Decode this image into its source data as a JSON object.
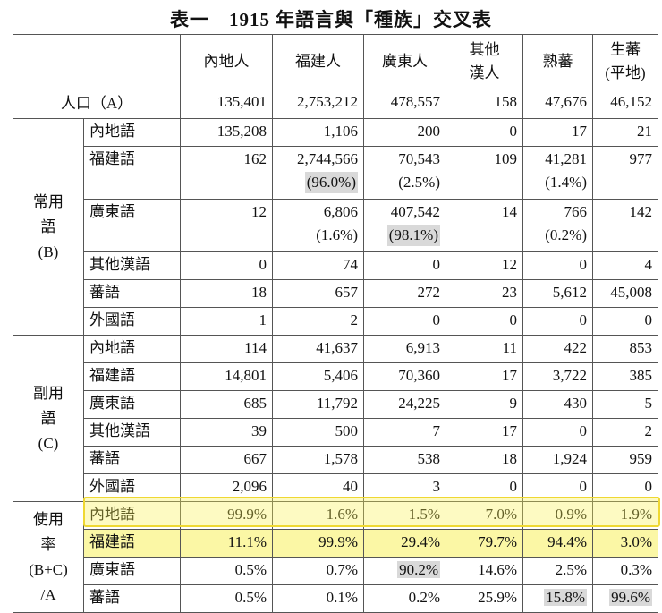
{
  "title": {
    "label": "表一",
    "year": "1915",
    "rest": "年語言與「種族」交叉表"
  },
  "columns": [
    {
      "lines": [
        "內地人"
      ]
    },
    {
      "lines": [
        "福建人"
      ]
    },
    {
      "lines": [
        "廣東人"
      ]
    },
    {
      "lines": [
        "其他",
        "漢人"
      ]
    },
    {
      "lines": [
        "熟蕃"
      ]
    },
    {
      "lines": [
        "生蕃",
        "(平地)"
      ]
    }
  ],
  "population": {
    "label": "人口（A）",
    "values": [
      "135,401",
      "2,753,212",
      "478,557",
      "158",
      "47,676",
      "46,152"
    ]
  },
  "groups": {
    "common": [
      "常用",
      "語",
      "(B)"
    ],
    "secondary": [
      "副用",
      "語",
      "(C)"
    ],
    "usage": [
      "使用",
      "率",
      "(B+C)",
      "/A"
    ]
  },
  "common_rows": [
    {
      "lang": "內地語",
      "values": [
        "135,208",
        "1,106",
        "200",
        "0",
        "17",
        "21"
      ],
      "pcts": []
    },
    {
      "lang": "福建語",
      "values": [
        "162",
        "2,744,566",
        "70,543",
        "109",
        "41,281",
        "977"
      ],
      "pcts": [
        "",
        "(96.0%)",
        "(2.5%)",
        "",
        "(1.4%)",
        ""
      ]
    },
    {
      "lang": "廣東語",
      "values": [
        "12",
        "6,806",
        "407,542",
        "14",
        "766",
        "142"
      ],
      "pcts": [
        "",
        "(1.6%)",
        "(98.1%)",
        "",
        "(0.2%)",
        ""
      ]
    },
    {
      "lang": "其他漢語",
      "values": [
        "0",
        "74",
        "0",
        "12",
        "0",
        "4"
      ],
      "pcts": []
    },
    {
      "lang": "蕃語",
      "values": [
        "18",
        "657",
        "272",
        "23",
        "5,612",
        "45,008"
      ],
      "pcts": []
    },
    {
      "lang": "外國語",
      "values": [
        "1",
        "2",
        "0",
        "0",
        "0",
        "0"
      ],
      "pcts": []
    }
  ],
  "secondary_rows": [
    {
      "lang": "內地語",
      "values": [
        "114",
        "41,637",
        "6,913",
        "11",
        "422",
        "853"
      ]
    },
    {
      "lang": "福建語",
      "values": [
        "14,801",
        "5,406",
        "70,360",
        "17",
        "3,722",
        "385"
      ]
    },
    {
      "lang": "廣東語",
      "values": [
        "685",
        "11,792",
        "24,225",
        "9",
        "430",
        "5"
      ]
    },
    {
      "lang": "其他漢語",
      "values": [
        "39",
        "500",
        "7",
        "17",
        "0",
        "2"
      ]
    },
    {
      "lang": "蕃語",
      "values": [
        "667",
        "1,578",
        "538",
        "18",
        "1,924",
        "959"
      ]
    },
    {
      "lang": "外國語",
      "values": [
        "2,096",
        "40",
        "3",
        "0",
        "0",
        "0"
      ]
    }
  ],
  "usage_rows": [
    {
      "lang": "內地語",
      "values": [
        "99.9%",
        "1.6%",
        "1.5%",
        "7.0%",
        "0.9%",
        "1.9%"
      ]
    },
    {
      "lang": "福建語",
      "values": [
        "11.1%",
        "99.9%",
        "29.4%",
        "79.7%",
        "94.4%",
        "3.0%"
      ]
    },
    {
      "lang": "廣東語",
      "values": [
        "0.5%",
        "0.7%",
        "90.2%",
        "14.6%",
        "2.5%",
        "0.3%"
      ]
    },
    {
      "lang": "蕃語",
      "values": [
        "0.5%",
        "0.1%",
        "0.2%",
        "25.9%",
        "15.8%",
        "99.6%"
      ]
    }
  ],
  "colors": {
    "highlight": "#f5e84a",
    "shade": "#d9d9d9",
    "border": "#555555"
  }
}
